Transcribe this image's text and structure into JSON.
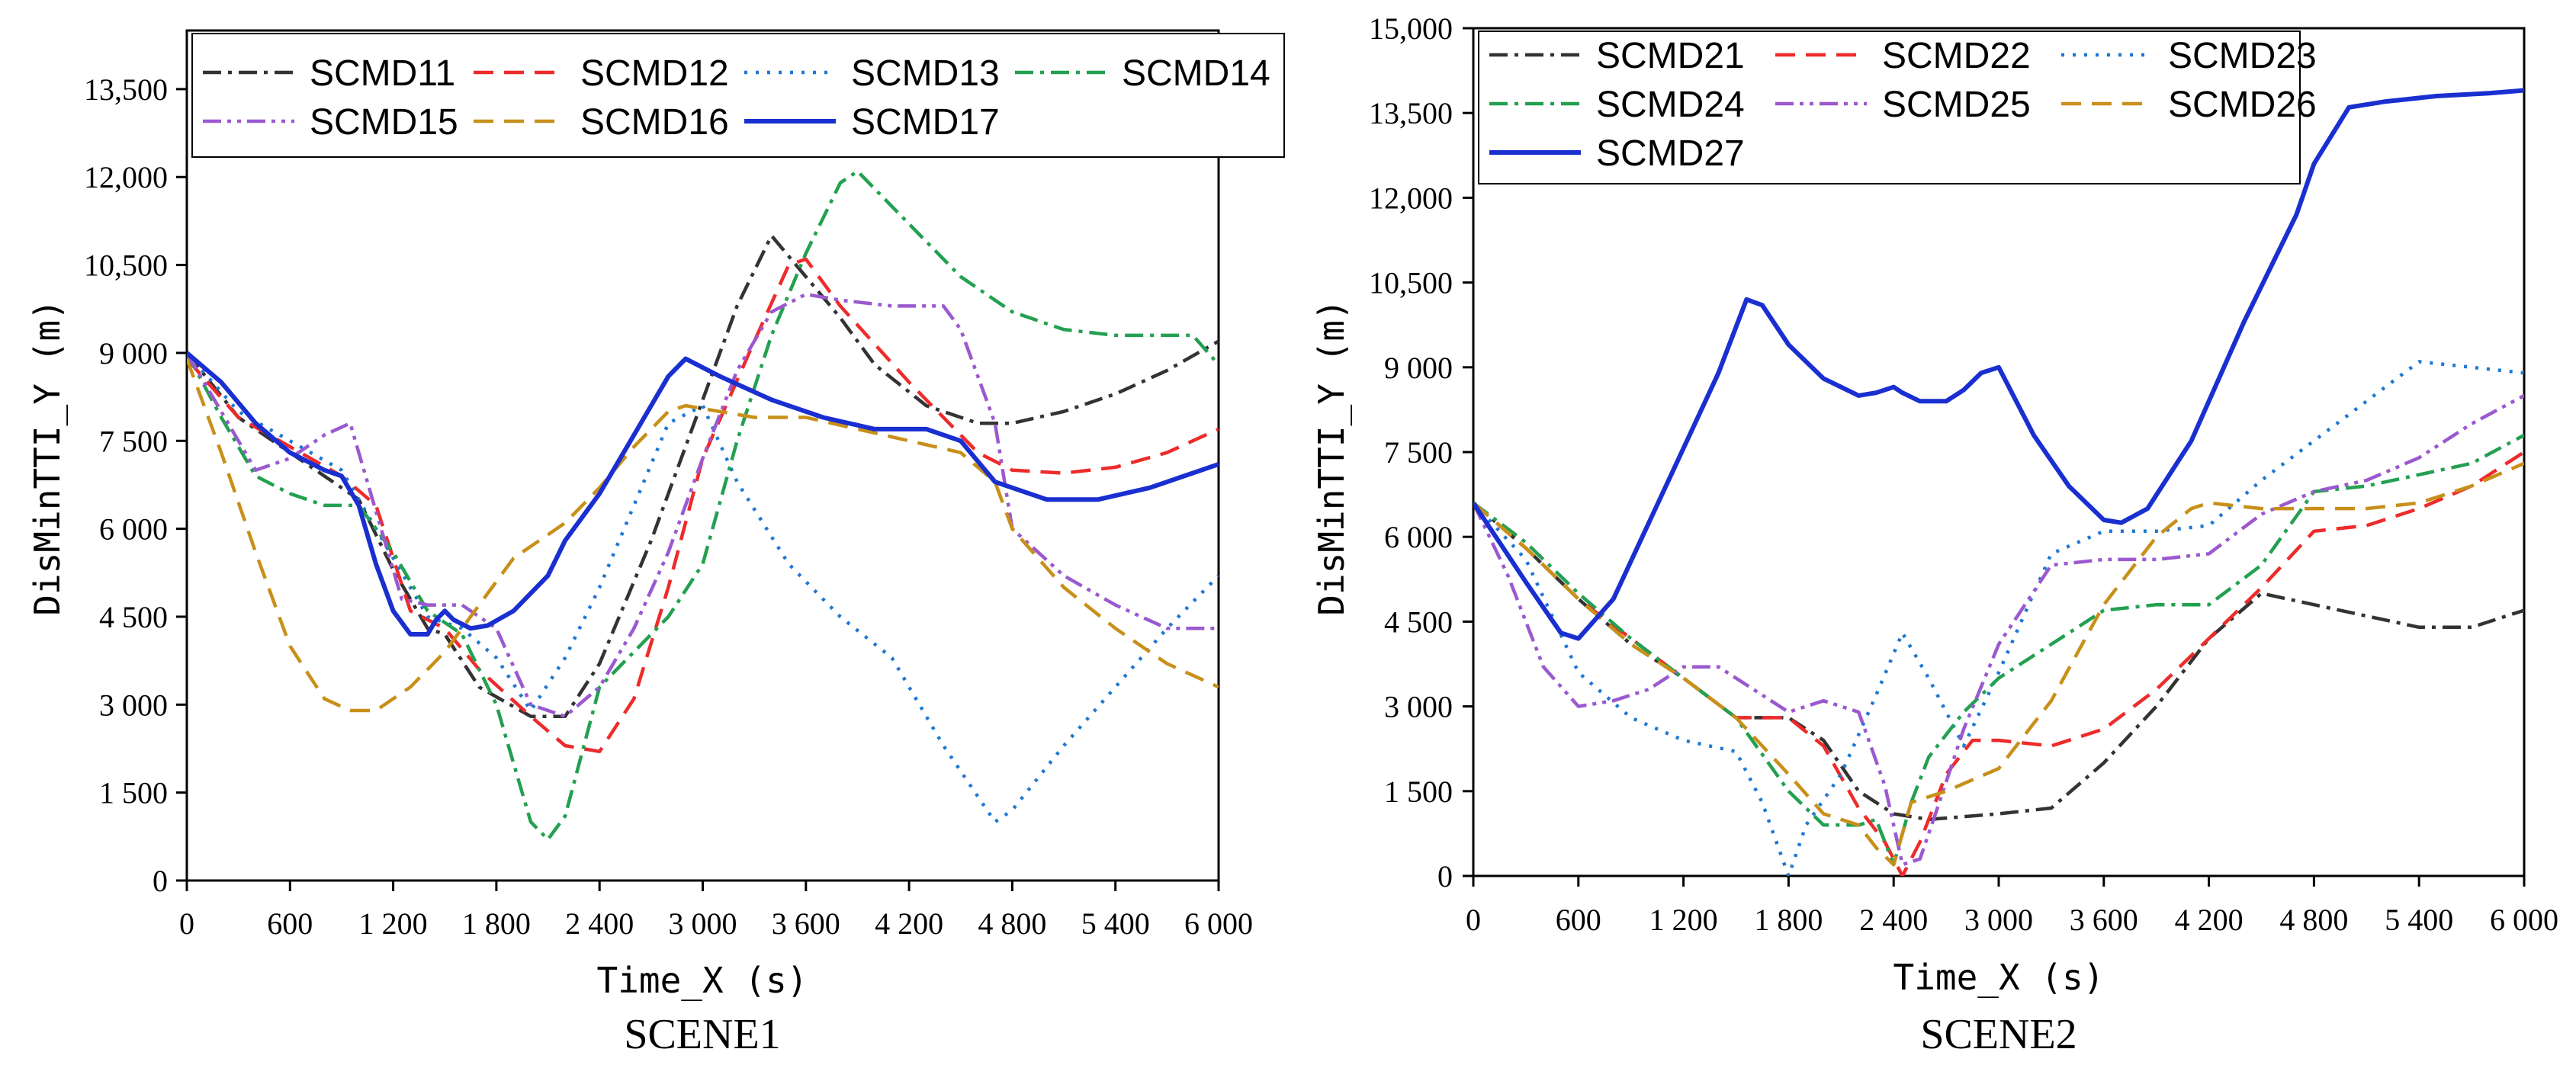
{
  "chart_data": [
    {
      "type": "line",
      "title": "SCENE1",
      "xlabel": "Time_X (s)",
      "ylabel": "DisMinTTI_Y (m)",
      "xlim": [
        0,
        6000
      ],
      "ylim": [
        0,
        14500
      ],
      "xticks": [
        0,
        600,
        1200,
        1800,
        2400,
        3000,
        3600,
        4200,
        4800,
        5400,
        6000
      ],
      "xtick_labels": [
        "0",
        "600",
        "1 200",
        "1 800",
        "2 400",
        "3 000",
        "3 600",
        "4 200",
        "4 800",
        "5 400",
        "6 000"
      ],
      "yticks": [
        0,
        1500,
        3000,
        4500,
        6000,
        7500,
        9000,
        10500,
        12000,
        13500
      ],
      "ytick_labels": [
        "0",
        "1 500",
        "3 000",
        "4 500",
        "6 000",
        "7 500",
        "9 000",
        "10,500",
        "12,000",
        "13,500"
      ],
      "legend_position": "top",
      "legend_columns": 4,
      "series": [
        {
          "name": "SCMD11",
          "color": "#333333",
          "dash": "dashdot",
          "x": [
            0,
            300,
            600,
            900,
            1000,
            1200,
            1400,
            1500,
            1700,
            2000,
            2200,
            2400,
            2700,
            3000,
            3200,
            3400,
            3600,
            3800,
            4000,
            4300,
            4600,
            4800,
            5100,
            5400,
            5700,
            6000
          ],
          "y": [
            9000,
            7900,
            7300,
            6700,
            6500,
            5300,
            4300,
            4200,
            3300,
            2800,
            2800,
            3700,
            5800,
            8200,
            9800,
            11000,
            10300,
            9600,
            8800,
            8100,
            7800,
            7800,
            8000,
            8300,
            8700,
            9200
          ]
        },
        {
          "name": "SCMD12",
          "color": "#ee2b2b",
          "dash": "dash",
          "x": [
            0,
            300,
            600,
            900,
            1100,
            1300,
            1500,
            1700,
            2000,
            2200,
            2400,
            2600,
            2800,
            3000,
            3300,
            3500,
            3600,
            3800,
            4200,
            4600,
            4800,
            5100,
            5400,
            5700,
            6000
          ],
          "y": [
            8900,
            7900,
            7400,
            6900,
            6400,
            4600,
            4300,
            3600,
            2800,
            2300,
            2200,
            3100,
            5000,
            7200,
            9200,
            10500,
            10600,
            9800,
            8500,
            7300,
            7000,
            6950,
            7050,
            7300,
            7700
          ]
        },
        {
          "name": "SCMD13",
          "color": "#1e78d2",
          "dash": "dot",
          "x": [
            0,
            300,
            600,
            900,
            1200,
            1400,
            1600,
            1800,
            2000,
            2200,
            2400,
            2600,
            2800,
            3000,
            3200,
            3500,
            3800,
            4100,
            4400,
            4700,
            4800,
            5100,
            5400,
            5700,
            6000
          ],
          "y": [
            9000,
            8000,
            7500,
            7000,
            5500,
            4500,
            4300,
            3800,
            2900,
            3800,
            5000,
            6400,
            7800,
            8100,
            6800,
            5400,
            4500,
            3800,
            2300,
            1000,
            1200,
            2300,
            3300,
            4300,
            5200
          ]
        },
        {
          "name": "SCMD14",
          "color": "#23a050",
          "dash": "dashdot",
          "x": [
            0,
            200,
            400,
            600,
            800,
            1000,
            1200,
            1400,
            1600,
            1800,
            2000,
            2100,
            2200,
            2400,
            2600,
            2800,
            3000,
            3200,
            3400,
            3600,
            3800,
            3900,
            4200,
            4500,
            4800,
            5100,
            5400,
            5700,
            5850,
            6000
          ],
          "y": [
            9000,
            7900,
            6900,
            6600,
            6400,
            6400,
            5600,
            4600,
            4200,
            3000,
            1000,
            700,
            1100,
            3300,
            3900,
            4500,
            5400,
            7500,
            9300,
            10700,
            11900,
            12100,
            11200,
            10300,
            9700,
            9400,
            9300,
            9300,
            9300,
            8800
          ]
        },
        {
          "name": "SCMD15",
          "color": "#9b59d0",
          "dash": "dashdotdot",
          "x": [
            0,
            200,
            400,
            600,
            800,
            950,
            1100,
            1250,
            1400,
            1600,
            1800,
            2000,
            2200,
            2400,
            2600,
            2800,
            3000,
            3200,
            3400,
            3600,
            3800,
            4100,
            4400,
            4500,
            4700,
            4800,
            5100,
            5400,
            5700,
            6000
          ],
          "y": [
            9000,
            8000,
            7000,
            7200,
            7600,
            7800,
            6300,
            4800,
            4700,
            4700,
            4300,
            3000,
            2800,
            3300,
            4300,
            5600,
            7200,
            8700,
            9700,
            10000,
            9900,
            9800,
            9800,
            9400,
            7800,
            6000,
            5200,
            4700,
            4300,
            4300
          ]
        },
        {
          "name": "SCMD16",
          "color": "#c8901a",
          "dash": "dash",
          "x": [
            0,
            200,
            400,
            600,
            800,
            950,
            1100,
            1300,
            1500,
            1700,
            1900,
            2200,
            2400,
            2600,
            2800,
            2900,
            3100,
            3300,
            3600,
            3900,
            4200,
            4500,
            4700,
            4800,
            5100,
            5400,
            5700,
            6000
          ],
          "y": [
            8900,
            7300,
            5600,
            4000,
            3100,
            2900,
            2900,
            3300,
            3900,
            4700,
            5500,
            6100,
            6700,
            7400,
            8000,
            8100,
            8000,
            7900,
            7900,
            7700,
            7500,
            7300,
            6800,
            6000,
            5000,
            4300,
            3700,
            3300
          ]
        },
        {
          "name": "SCMD17",
          "color": "#1a2fd0",
          "dash": "solid",
          "x": [
            0,
            200,
            400,
            600,
            800,
            900,
            1000,
            1100,
            1200,
            1300,
            1400,
            1450,
            1500,
            1550,
            1650,
            1750,
            1900,
            2100,
            2200,
            2400,
            2600,
            2800,
            2900,
            3100,
            3400,
            3700,
            4000,
            4300,
            4500,
            4700,
            4800,
            5000,
            5300,
            5600,
            5800,
            6000
          ],
          "y": [
            9000,
            8500,
            7800,
            7300,
            7000,
            6900,
            6400,
            5400,
            4600,
            4200,
            4200,
            4450,
            4600,
            4450,
            4300,
            4350,
            4600,
            5200,
            5800,
            6600,
            7600,
            8600,
            8900,
            8600,
            8200,
            7900,
            7700,
            7700,
            7500,
            6800,
            6700,
            6500,
            6500,
            6700,
            6900,
            7100
          ]
        }
      ]
    },
    {
      "type": "line",
      "title": "SCENE2",
      "xlabel": "Time_X (s)",
      "ylabel": "DisMinTTI_Y (m)",
      "xlim": [
        0,
        6000
      ],
      "ylim": [
        0,
        15000
      ],
      "xticks": [
        0,
        600,
        1200,
        1800,
        2400,
        3000,
        3600,
        4200,
        4800,
        5400,
        6000
      ],
      "xtick_labels": [
        "0",
        "600",
        "1 200",
        "1 800",
        "2 400",
        "3 000",
        "3 600",
        "4 200",
        "4 800",
        "5 400",
        "6 000"
      ],
      "yticks": [
        0,
        1500,
        3000,
        4500,
        6000,
        7500,
        9000,
        10500,
        12000,
        13500,
        15000
      ],
      "ytick_labels": [
        "0",
        "1 500",
        "3 000",
        "4 500",
        "6 000",
        "7 500",
        "9 000",
        "10,500",
        "12,000",
        "13,500",
        "15,000"
      ],
      "legend_position": "top-left",
      "legend_columns": 3,
      "series": [
        {
          "name": "SCMD21",
          "color": "#333333",
          "dash": "dashdot",
          "x": [
            0,
            300,
            600,
            900,
            1200,
            1500,
            1800,
            2000,
            2200,
            2400,
            2600,
            2800,
            3000,
            3300,
            3600,
            3900,
            4200,
            4500,
            4800,
            5100,
            5400,
            5700,
            6000
          ],
          "y": [
            6600,
            5800,
            4900,
            4100,
            3500,
            2800,
            2800,
            2400,
            1500,
            1100,
            1000,
            1050,
            1100,
            1200,
            2000,
            3000,
            4200,
            5000,
            4800,
            4600,
            4400,
            4400,
            4700
          ]
        },
        {
          "name": "SCMD22",
          "color": "#ee2b2b",
          "dash": "dash",
          "x": [
            0,
            300,
            600,
            900,
            1200,
            1500,
            1800,
            2000,
            2200,
            2350,
            2450,
            2550,
            2700,
            2850,
            3000,
            3300,
            3600,
            3900,
            4200,
            4500,
            4800,
            5100,
            5400,
            5700,
            6000
          ],
          "y": [
            6600,
            5800,
            4900,
            4200,
            3500,
            2800,
            2800,
            2300,
            1200,
            600,
            0,
            600,
            1800,
            2400,
            2400,
            2300,
            2600,
            3300,
            4200,
            5100,
            6100,
            6200,
            6500,
            6900,
            7500
          ]
        },
        {
          "name": "SCMD23",
          "color": "#1e78d2",
          "dash": "dot",
          "x": [
            0,
            300,
            600,
            900,
            1200,
            1500,
            1650,
            1800,
            1900,
            2100,
            2300,
            2450,
            2600,
            2800,
            3000,
            3300,
            3600,
            3900,
            4200,
            4500,
            4800,
            5100,
            5400,
            5700,
            6000
          ],
          "y": [
            6600,
            5600,
            3600,
            2800,
            2400,
            2200,
            1300,
            0,
            900,
            1800,
            3200,
            4300,
            3500,
            2300,
            3600,
            5700,
            6100,
            6100,
            6200,
            7000,
            7700,
            8400,
            9100,
            9000,
            8900
          ]
        },
        {
          "name": "SCMD24",
          "color": "#23a050",
          "dash": "dashdot",
          "x": [
            0,
            300,
            600,
            900,
            1200,
            1500,
            1800,
            2000,
            2200,
            2300,
            2400,
            2500,
            2600,
            2800,
            3000,
            3300,
            3600,
            3900,
            4200,
            4500,
            4800,
            5100,
            5400,
            5700,
            6000
          ],
          "y": [
            6600,
            5900,
            5000,
            4200,
            3500,
            2800,
            1500,
            900,
            900,
            1000,
            200,
            1300,
            2100,
            2900,
            3500,
            4100,
            4700,
            4800,
            4800,
            5500,
            6800,
            6900,
            7100,
            7300,
            7800
          ]
        },
        {
          "name": "SCMD25",
          "color": "#9b59d0",
          "dash": "dashdotdot",
          "x": [
            0,
            200,
            400,
            600,
            800,
            1000,
            1200,
            1400,
            1600,
            1800,
            2000,
            2200,
            2350,
            2450,
            2550,
            2650,
            2800,
            3000,
            3300,
            3600,
            3900,
            4200,
            4500,
            4800,
            5100,
            5400,
            5700,
            6000
          ],
          "y": [
            6600,
            5300,
            3700,
            3000,
            3100,
            3300,
            3700,
            3700,
            3300,
            2900,
            3100,
            2900,
            1600,
            200,
            300,
            1200,
            2600,
            4100,
            5500,
            5600,
            5600,
            5700,
            6400,
            6800,
            7000,
            7400,
            8000,
            8500
          ]
        },
        {
          "name": "SCMD26",
          "color": "#c8901a",
          "dash": "dash",
          "x": [
            0,
            300,
            600,
            900,
            1200,
            1500,
            1800,
            2000,
            2200,
            2300,
            2400,
            2500,
            2700,
            3000,
            3300,
            3600,
            3900,
            4100,
            4200,
            4500,
            4800,
            5100,
            5400,
            5700,
            6000
          ],
          "y": [
            6600,
            5800,
            4900,
            4100,
            3500,
            2800,
            1800,
            1100,
            900,
            500,
            200,
            1300,
            1500,
            1900,
            3100,
            4800,
            6000,
            6500,
            6600,
            6500,
            6500,
            6500,
            6600,
            6900,
            7300
          ]
        },
        {
          "name": "SCMD27",
          "color": "#1a2fd0",
          "dash": "solid",
          "x": [
            0,
            300,
            500,
            600,
            800,
            1100,
            1400,
            1560,
            1650,
            1800,
            2000,
            2200,
            2300,
            2400,
            2450,
            2550,
            2700,
            2800,
            2900,
            3000,
            3200,
            3400,
            3600,
            3700,
            3850,
            4100,
            4400,
            4700,
            4800,
            5000,
            5200,
            5500,
            5800,
            6000
          ],
          "y": [
            6600,
            5200,
            4300,
            4200,
            4900,
            6900,
            8900,
            10200,
            10100,
            9400,
            8800,
            8500,
            8550,
            8650,
            8550,
            8400,
            8400,
            8600,
            8900,
            9000,
            7800,
            6900,
            6300,
            6250,
            6500,
            7700,
            9800,
            11700,
            12600,
            13600,
            13700,
            13800,
            13850,
            13900
          ]
        }
      ]
    }
  ]
}
